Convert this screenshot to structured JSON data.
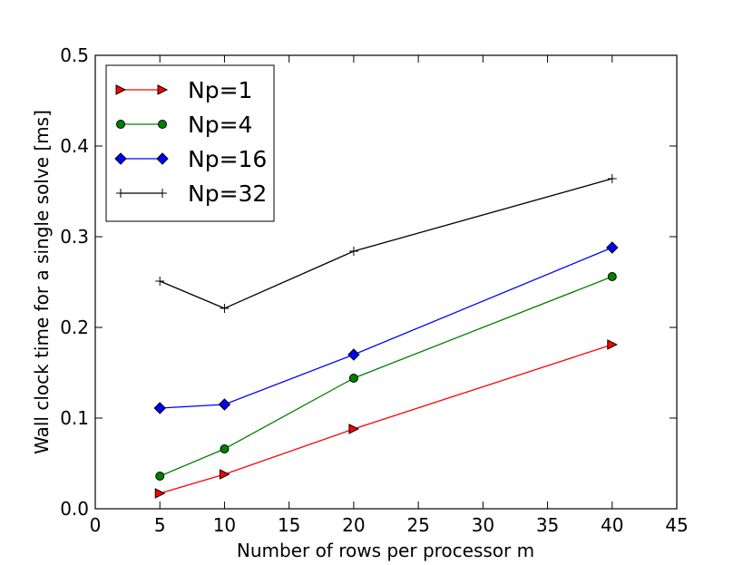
{
  "chart_data": {
    "type": "line",
    "title": "",
    "xlabel": "Number of rows per processor m",
    "ylabel": "Wall clock time for a single solve [ms]",
    "xlim": [
      0,
      45
    ],
    "ylim": [
      0.0,
      0.5
    ],
    "xticks": [
      0,
      5,
      10,
      15,
      20,
      25,
      30,
      35,
      40,
      45
    ],
    "xtick_labels": [
      "0",
      "5",
      "10",
      "15",
      "20",
      "25",
      "30",
      "35",
      "40",
      "45"
    ],
    "yticks": [
      0.0,
      0.1,
      0.2,
      0.3,
      0.4,
      0.5
    ],
    "ytick_labels": [
      "0.0",
      "0.1",
      "0.2",
      "0.3",
      "0.4",
      "0.5"
    ],
    "grid": false,
    "legend_position": "top-left",
    "x": [
      5,
      10,
      20,
      40
    ],
    "series": [
      {
        "name": "Np=1",
        "values": [
          0.017,
          0.038,
          0.088,
          0.181
        ],
        "color": "#ff0000",
        "marker": "triangle-right"
      },
      {
        "name": "Np=4",
        "values": [
          0.036,
          0.066,
          0.144,
          0.256
        ],
        "color": "#008000",
        "marker": "circle"
      },
      {
        "name": "Np=16",
        "values": [
          0.111,
          0.115,
          0.17,
          0.288
        ],
        "color": "#0000ff",
        "marker": "diamond"
      },
      {
        "name": "Np=32",
        "values": [
          0.251,
          0.221,
          0.284,
          0.364
        ],
        "color": "#000000",
        "marker": "plus"
      }
    ]
  }
}
